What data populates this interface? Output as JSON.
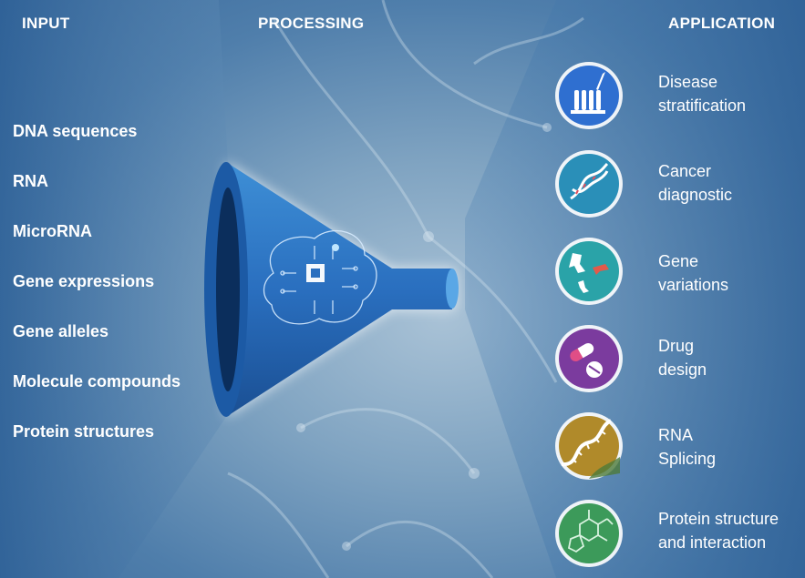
{
  "headers": {
    "input": "INPUT",
    "processing": "PROCESSING",
    "application": "APPLICATION"
  },
  "inputs": [
    "DNA sequences",
    "RNA",
    "MicroRNA",
    "Gene expressions",
    "Gene alleles",
    "Molecule compounds",
    "Protein structures"
  ],
  "applications": [
    {
      "line1": "Disease",
      "line2": "stratification",
      "icon": "test-tubes-icon",
      "color": "#2f6fd0"
    },
    {
      "line1": "Cancer",
      "line2": "diagnostic",
      "icon": "dna-helix-icon",
      "color": "#2a8fb8"
    },
    {
      "line1": "Gene",
      "line2": "variations",
      "icon": "chromosome-icon",
      "color": "#2aa3a8"
    },
    {
      "line1": "Drug",
      "line2": "design",
      "icon": "pills-icon",
      "color": "#7b3b9e"
    },
    {
      "line1": "RNA",
      "line2": "Splicing",
      "icon": "rna-strand-icon",
      "color": "#b08a2a"
    },
    {
      "line1": "Protein structure",
      "line2": "and interaction",
      "icon": "molecule-icon",
      "color": "#3c9a5a"
    }
  ]
}
